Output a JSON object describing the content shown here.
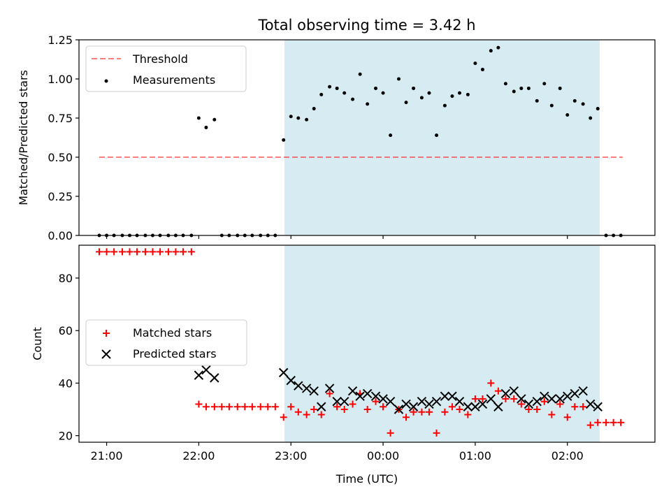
{
  "chart_data": [
    {
      "type": "scatter",
      "title": "Total observing time = 3.42 h",
      "ylabel": "Matched/Predicted stars",
      "xlabel": "",
      "ylim": [
        0,
        1.25
      ],
      "yticks": [
        "0.00",
        "0.25",
        "0.50",
        "0.75",
        "1.00",
        "1.25"
      ],
      "xlim_hours": [
        20.7,
        26.95
      ],
      "x_tick_hours": [
        21,
        22,
        23,
        24,
        25,
        26
      ],
      "shaded_span_hours": [
        22.93,
        26.35
      ],
      "shaded_color": "#add8e6",
      "legend_position": "upper left",
      "threshold": {
        "name": "Threshold",
        "value": 0.5,
        "x_start": 20.92,
        "x_end": 26.6,
        "color": "#ff0000",
        "style": "dashed"
      },
      "measurements": {
        "name": "Measurements",
        "color": "#000000",
        "x": [
          20.92,
          21.0,
          21.08,
          21.17,
          21.25,
          21.33,
          21.42,
          21.5,
          21.58,
          21.67,
          21.75,
          21.83,
          21.92,
          22.0,
          22.08,
          22.17,
          22.25,
          22.33,
          22.42,
          22.5,
          22.58,
          22.67,
          22.75,
          22.83,
          22.92,
          23.0,
          23.08,
          23.17,
          23.25,
          23.33,
          23.42,
          23.5,
          23.58,
          23.67,
          23.75,
          23.83,
          23.92,
          24.0,
          24.08,
          24.17,
          24.25,
          24.33,
          24.42,
          24.5,
          24.58,
          24.67,
          24.75,
          24.83,
          24.92,
          25.0,
          25.08,
          25.17,
          25.25,
          25.33,
          25.42,
          25.5,
          25.58,
          25.67,
          25.75,
          25.83,
          25.92,
          26.0,
          26.08,
          26.17,
          26.25,
          26.33,
          26.42,
          26.5,
          26.58
        ],
        "y": [
          0,
          0,
          0,
          0,
          0,
          0,
          0,
          0,
          0,
          0,
          0,
          0,
          0,
          0.75,
          0.69,
          0.74,
          0,
          0,
          0,
          0,
          0,
          0,
          0,
          0,
          0.61,
          0.76,
          0.75,
          0.74,
          0.81,
          0.9,
          0.95,
          0.94,
          0.91,
          0.87,
          1.03,
          0.84,
          0.94,
          0.91,
          0.64,
          1.0,
          0.85,
          0.94,
          0.88,
          0.91,
          0.64,
          0.83,
          0.89,
          0.91,
          0.9,
          1.1,
          1.06,
          1.18,
          1.2,
          0.97,
          0.92,
          0.94,
          0.94,
          0.86,
          0.97,
          0.83,
          0.94,
          0.77,
          0.86,
          0.84,
          0.75,
          0.81,
          0,
          0,
          0
        ]
      }
    },
    {
      "type": "scatter",
      "title": "",
      "ylabel": "Count",
      "xlabel": "Time (UTC)",
      "ylim": [
        17.5,
        92.5
      ],
      "yticks": [
        "20",
        "40",
        "60",
        "80"
      ],
      "x_tick_labels": [
        "21:00",
        "22:00",
        "23:00",
        "00:00",
        "01:00",
        "02:00"
      ],
      "legend_position": "center left",
      "series": [
        {
          "name": "Matched stars",
          "marker": "plus",
          "color": "#ff0000",
          "x": [
            20.92,
            21.0,
            21.08,
            21.17,
            21.25,
            21.33,
            21.42,
            21.5,
            21.58,
            21.67,
            21.75,
            21.83,
            21.92,
            22.0,
            22.08,
            22.17,
            22.25,
            22.33,
            22.42,
            22.5,
            22.58,
            22.67,
            22.75,
            22.83,
            22.92,
            23.0,
            23.08,
            23.17,
            23.25,
            23.33,
            23.42,
            23.5,
            23.58,
            23.67,
            23.75,
            23.83,
            23.92,
            24.0,
            24.08,
            24.17,
            24.25,
            24.33,
            24.42,
            24.5,
            24.58,
            24.67,
            24.75,
            24.83,
            24.92,
            25.0,
            25.08,
            25.17,
            25.25,
            25.33,
            25.42,
            25.5,
            25.58,
            25.67,
            25.75,
            25.83,
            25.92,
            26.0,
            26.08,
            26.17,
            26.25,
            26.33,
            26.42,
            26.5,
            26.58
          ],
          "y": [
            90,
            90,
            90,
            90,
            90,
            90,
            90,
            90,
            90,
            90,
            90,
            90,
            90,
            32,
            31,
            31,
            31,
            31,
            31,
            31,
            31,
            31,
            31,
            31,
            27,
            31,
            29,
            28,
            30,
            28,
            36,
            31,
            30,
            32,
            36,
            30,
            33,
            31,
            21,
            30,
            27,
            29,
            29,
            29,
            21,
            29,
            31,
            30,
            28,
            34,
            34,
            40,
            37,
            34,
            34,
            32,
            30,
            30,
            33,
            28,
            32,
            27,
            31,
            31,
            24,
            25,
            25,
            25,
            25
          ]
        },
        {
          "name": "Predicted stars",
          "marker": "x",
          "color": "#000000",
          "x": [
            22.0,
            22.08,
            22.17,
            22.92,
            23.0,
            23.08,
            23.17,
            23.25,
            23.33,
            23.42,
            23.5,
            23.58,
            23.67,
            23.75,
            23.83,
            23.92,
            24.0,
            24.08,
            24.17,
            24.25,
            24.33,
            24.42,
            24.5,
            24.58,
            24.67,
            24.75,
            24.83,
            24.92,
            25.0,
            25.08,
            25.17,
            25.25,
            25.33,
            25.42,
            25.5,
            25.58,
            25.67,
            25.75,
            25.83,
            25.92,
            26.0,
            26.08,
            26.17,
            26.25,
            26.33
          ],
          "y": [
            43,
            45,
            42,
            44,
            41,
            39,
            38,
            37,
            31,
            38,
            33,
            33,
            37,
            35,
            36,
            35,
            34,
            33,
            30,
            32,
            31,
            33,
            32,
            33,
            35,
            35,
            33,
            31,
            31,
            32,
            34,
            31,
            36,
            37,
            34,
            32,
            33,
            35,
            34,
            34,
            35,
            36,
            37,
            32,
            31
          ]
        }
      ]
    }
  ]
}
